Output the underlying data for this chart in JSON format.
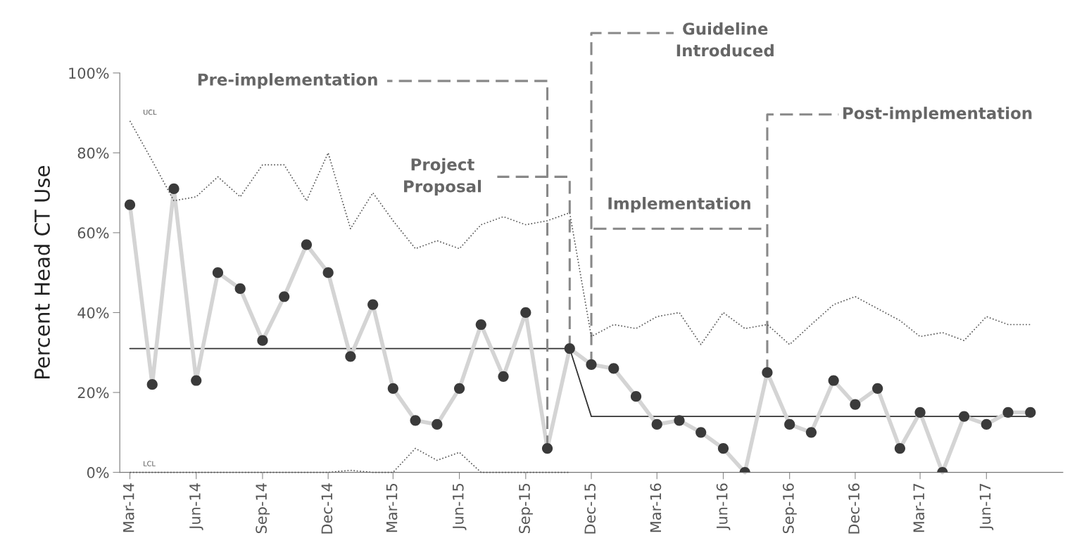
{
  "chart_data": {
    "type": "line",
    "ylabel": "Percent Head CT Use",
    "x": [
      "2014-03",
      "2014-04",
      "2014-05",
      "2014-06",
      "2014-07",
      "2014-08",
      "2014-09",
      "2014-10",
      "2014-11",
      "2014-12",
      "2015-01",
      "2015-02",
      "2015-03",
      "2015-04",
      "2015-05",
      "2015-06",
      "2015-07",
      "2015-08",
      "2015-09",
      "2015-10",
      "2015-11",
      "2015-12",
      "2016-01",
      "2016-02",
      "2016-03",
      "2016-04",
      "2016-05",
      "2016-06",
      "2016-07",
      "2016-08",
      "2016-09",
      "2016-10",
      "2016-11",
      "2016-12",
      "2017-01",
      "2017-02",
      "2017-03",
      "2017-04",
      "2017-05",
      "2017-06",
      "2017-07",
      "2017-08"
    ],
    "series": [
      {
        "color": "#d4d4d4",
        "colors": [
          "#3a3a3a",
          "#3a3a3a",
          "#3a3a3a",
          "#3a3a3a",
          "#3a3a3a",
          "#3a3a3a",
          "#3a3a3a",
          "#3a3a3a",
          "#3a3a3a",
          "#3a3a3a",
          "#3a3a3a",
          "#3a3a3a",
          "#3a3a3a",
          "#3a3a3a",
          "#3a3a3a",
          "#3a3a3a",
          "#3a3a3a",
          "#3a3a3a",
          "#3a3a3a",
          "#3a3a3a",
          "#3a3a3a",
          "#3a3a3a",
          "#3a3a3a",
          "#3a3a3a",
          "#3a3a3a",
          "#3a3a3a",
          "#3a3a3a",
          "#3a3a3a",
          "#3a3a3a",
          "#3a3a3a",
          "#3a3a3a",
          "#3a3a3a",
          "#3a3a3a",
          "#3a3a3a",
          "#3a3a3a",
          "#3a3a3a",
          "#3a3a3a",
          "#3a3a3a",
          "#3a3a3a",
          "#3a3a3a",
          "#3a3a3a",
          "#3a3a3a"
        ],
        "marker": "circle",
        "line_style": "solid",
        "values": [
          67,
          22,
          71,
          23,
          50,
          46,
          33,
          44,
          57,
          50,
          29,
          42,
          21,
          13,
          12,
          21,
          37,
          24,
          40,
          6,
          31,
          27,
          26,
          19,
          12,
          13,
          10,
          6,
          0,
          25,
          12,
          10,
          23,
          17,
          21,
          6,
          15,
          0,
          14,
          12,
          15,
          15
        ]
      },
      {
        "color": "#555555",
        "marker": "none",
        "line_style": "dotted",
        "values": [
          88,
          78,
          68,
          69,
          74,
          69,
          77,
          77,
          68,
          80,
          61,
          70,
          63,
          56,
          58,
          56,
          62,
          64,
          62,
          63,
          65,
          34,
          37,
          36,
          39,
          40,
          32,
          40,
          36,
          37,
          32,
          37,
          42,
          44,
          41,
          38,
          34,
          35,
          33,
          39,
          37,
          37
        ]
      },
      {
        "color": "#555555",
        "marker": "none",
        "line_style": "dotted",
        "values": [
          0,
          0,
          0,
          0,
          0,
          0,
          0,
          0,
          0,
          0,
          0.5,
          0,
          0,
          6,
          3,
          5,
          0,
          0,
          0,
          0,
          0,
          null,
          null,
          null,
          null,
          null,
          null,
          null,
          null,
          null,
          null,
          null,
          null,
          null,
          null,
          null,
          null,
          null,
          null,
          null,
          null,
          null
        ]
      },
      {
        "color": "#333333",
        "marker": "none",
        "line_style": "solid",
        "values": [
          31,
          31,
          31,
          31,
          31,
          31,
          31,
          31,
          31,
          31,
          31,
          31,
          31,
          31,
          31,
          31,
          31,
          31,
          31,
          31,
          31,
          14,
          14,
          14,
          14,
          14,
          14,
          14,
          14,
          14,
          14,
          14,
          14,
          14,
          14,
          14,
          14,
          14,
          14,
          14,
          14,
          14
        ]
      }
    ],
    "xlim": [
      "2014-02-15",
      "2017-09-15"
    ],
    "xticks": [
      {
        "value": "2014-03",
        "label": "Mar-14"
      },
      {
        "value": "2014-06",
        "label": "Jun-14"
      },
      {
        "value": "2014-09",
        "label": "Sep-14"
      },
      {
        "value": "2014-12",
        "label": "Dec-14"
      },
      {
        "value": "2015-03",
        "label": "Mar-15"
      },
      {
        "value": "2015-06",
        "label": "Jun-15"
      },
      {
        "value": "2015-09",
        "label": "Sep-15"
      },
      {
        "value": "2015-12",
        "label": "Dec-15"
      },
      {
        "value": "2016-03",
        "label": "Mar-16"
      },
      {
        "value": "2016-06",
        "label": "Jun-16"
      },
      {
        "value": "2016-09",
        "label": "Sep-16"
      },
      {
        "value": "2016-12",
        "label": "Dec-16"
      },
      {
        "value": "2017-03",
        "label": "Mar-17"
      },
      {
        "value": "2017-06",
        "label": "Jun-17"
      }
    ],
    "ylim": [
      0,
      100
    ],
    "yticks": [
      {
        "value": 0,
        "label": "0%"
      },
      {
        "value": 20,
        "label": "20%"
      },
      {
        "value": 40,
        "label": "40%"
      },
      {
        "value": 60,
        "label": "60%"
      },
      {
        "value": 80,
        "label": "80%"
      },
      {
        "value": 100,
        "label": "100%"
      }
    ],
    "annotations": [
      {
        "text": "UCL",
        "x": "2014-03",
        "y": 88
      },
      {
        "text": "LCL",
        "x": "2014-03",
        "y": 0
      },
      {
        "text": "Pre-implementation",
        "x": "2015-10",
        "y": 6
      },
      {
        "text": "Project\nProposal",
        "x": "2015-11",
        "y": 31
      },
      {
        "text": "Guideline\nIntroduced",
        "x": "2015-12",
        "y": 27
      },
      "Implementation",
      {
        "text": "Post-implementation",
        "x": "2016-08",
        "y": 25
      }
    ],
    "grid": false,
    "legend": false
  }
}
